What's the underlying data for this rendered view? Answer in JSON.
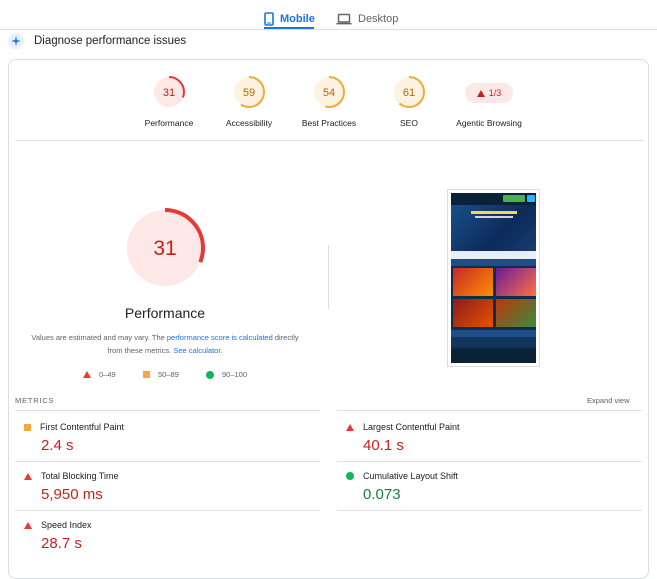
{
  "tabs": [
    {
      "label": "Mobile",
      "active": true,
      "icon": "smartphone-icon"
    },
    {
      "label": "Desktop",
      "active": false,
      "icon": "laptop-icon"
    }
  ],
  "diagnose": {
    "title": "Diagnose performance issues",
    "icon": "sparkle-icon"
  },
  "categories": [
    {
      "label": "Performance",
      "score": "31",
      "score_value": 31,
      "status": "fail"
    },
    {
      "label": "Accessibility",
      "score": "59",
      "score_value": 59,
      "status": "average"
    },
    {
      "label": "Best Practices",
      "score": "54",
      "score_value": 54,
      "status": "average"
    },
    {
      "label": "SEO",
      "score": "61",
      "score_value": 61,
      "status": "average"
    },
    {
      "label": "Agentic Browsing",
      "score": "1/3",
      "status": "fail"
    }
  ],
  "main_gauge": {
    "score": "31",
    "score_value": 31,
    "label": "Performance"
  },
  "note": {
    "prefix": "Values are estimated and may vary. The ",
    "link1": "performance score is calculated",
    "middle": " directly from these metrics. ",
    "link2": "See calculator."
  },
  "legend": [
    {
      "range": "0–49",
      "shape": "triangle",
      "color": "#e53935"
    },
    {
      "range": "50–89",
      "shape": "square",
      "color": "#f4a93b"
    },
    {
      "range": "90–100",
      "shape": "circle",
      "color": "#12b35a"
    }
  ],
  "metrics": {
    "heading": "METRICS",
    "expand_label": "Expand view",
    "items": [
      {
        "name": "First Contentful Paint",
        "value": "2.4 s",
        "status": "average"
      },
      {
        "name": "Largest Contentful Paint",
        "value": "40.1 s",
        "status": "fail"
      },
      {
        "name": "Total Blocking Time",
        "value": "5,950 ms",
        "status": "fail"
      },
      {
        "name": "Cumulative Layout Shift",
        "value": "0.073",
        "status": "pass"
      },
      {
        "name": "Speed Index",
        "value": "28.7 s",
        "status": "fail"
      }
    ]
  },
  "colors": {
    "accent": "#1a73e8",
    "fail": "#e53935",
    "average": "#f4a93b",
    "pass": "#12b35a"
  }
}
